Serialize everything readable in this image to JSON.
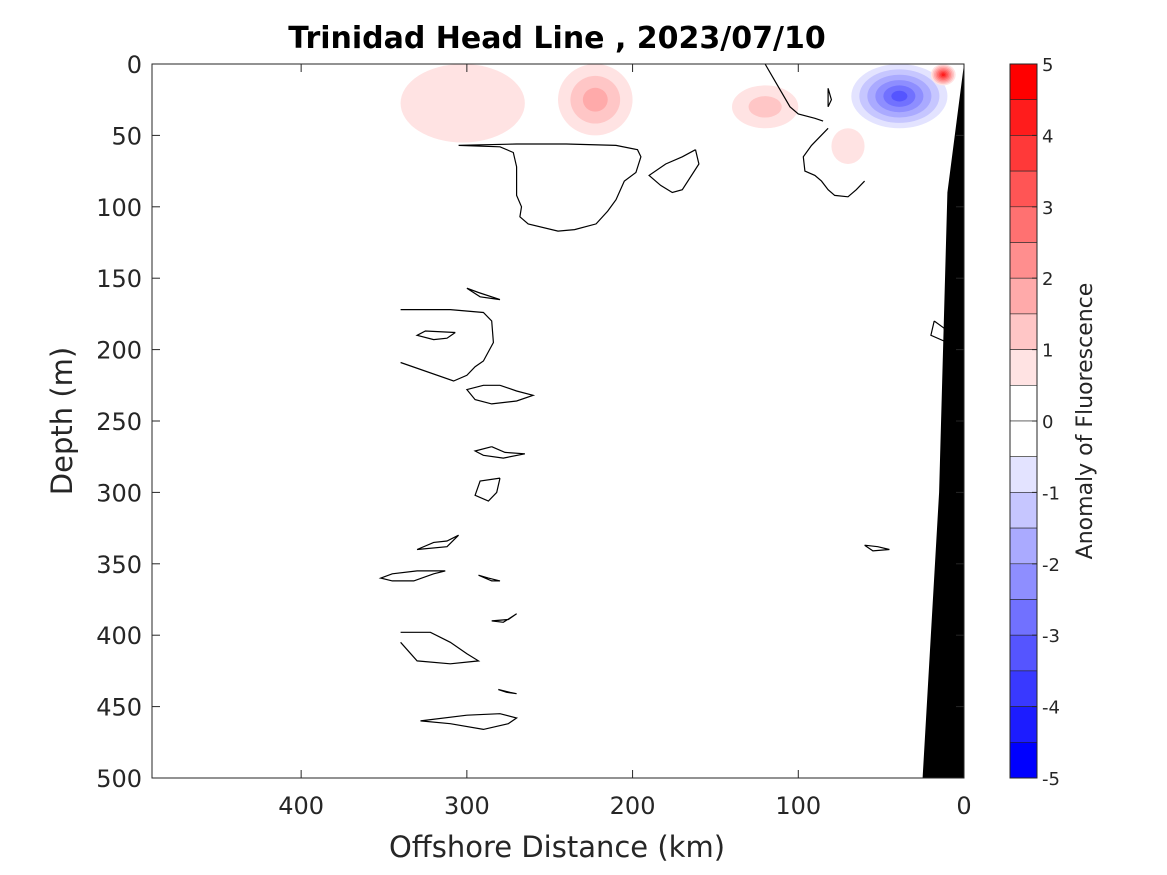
{
  "chart_data": {
    "type": "heatmap",
    "subtype": "contour-section",
    "title": "Trinidad Head Line , 2023/07/10",
    "xlabel": "Offshore Distance (km)",
    "ylabel": "Depth (m)",
    "colorbar_label": "Anomaly of Fluorescence",
    "xlim": [
      490,
      0
    ],
    "ylim": [
      500,
      0
    ],
    "x_reversed": true,
    "y_reversed": true,
    "x_ticks": [
      400,
      300,
      200,
      100,
      0
    ],
    "x_tick_labels": [
      "400",
      "300",
      "200",
      "100",
      "0"
    ],
    "y_ticks": [
      0,
      50,
      100,
      150,
      200,
      250,
      300,
      350,
      400,
      450,
      500
    ],
    "y_tick_labels": [
      "0",
      "50",
      "100",
      "150",
      "200",
      "250",
      "300",
      "350",
      "400",
      "450",
      "500"
    ],
    "colorbar": {
      "range": [
        -5,
        5
      ],
      "ticks": [
        5,
        4,
        3,
        2,
        1,
        0,
        -1,
        -2,
        -3,
        -4,
        -5
      ],
      "tick_labels": [
        "5",
        "4",
        "3",
        "2",
        "1",
        "0",
        "-1",
        "-2",
        "-3",
        "-4",
        "-5"
      ],
      "levels": [
        {
          "from": 4.5,
          "to": 5.0,
          "color": "#ff0000"
        },
        {
          "from": 4.0,
          "to": 4.5,
          "color": "#ff1c1c"
        },
        {
          "from": 3.5,
          "to": 4.0,
          "color": "#ff3939"
        },
        {
          "from": 3.0,
          "to": 3.5,
          "color": "#ff5555"
        },
        {
          "from": 2.5,
          "to": 3.0,
          "color": "#ff7171"
        },
        {
          "from": 2.0,
          "to": 2.5,
          "color": "#ff8e8e"
        },
        {
          "from": 1.5,
          "to": 2.0,
          "color": "#ffaaaa"
        },
        {
          "from": 1.0,
          "to": 1.5,
          "color": "#ffc6c6"
        },
        {
          "from": 0.5,
          "to": 1.0,
          "color": "#ffe3e3"
        },
        {
          "from": 0.0,
          "to": 0.5,
          "color": "#ffffff"
        },
        {
          "from": -0.5,
          "to": 0.0,
          "color": "#ffffff"
        },
        {
          "from": -1.0,
          "to": -0.5,
          "color": "#e3e3ff"
        },
        {
          "from": -1.5,
          "to": -1.0,
          "color": "#c6c6ff"
        },
        {
          "from": -2.0,
          "to": -1.5,
          "color": "#aaaaff"
        },
        {
          "from": -2.5,
          "to": -2.0,
          "color": "#8e8eff"
        },
        {
          "from": -3.0,
          "to": -2.5,
          "color": "#7171ff"
        },
        {
          "from": -3.5,
          "to": -3.0,
          "color": "#5555ff"
        },
        {
          "from": -4.0,
          "to": -3.5,
          "color": "#3939ff"
        },
        {
          "from": -4.5,
          "to": -4.0,
          "color": "#1c1cff"
        },
        {
          "from": -5.0,
          "to": -4.5,
          "color": "#0000ff"
        }
      ]
    },
    "data_extent_x": [
      340,
      0
    ],
    "anomaly_features": [
      {
        "name": "positive-patch-offshore",
        "x": [
          340,
          265
        ],
        "y": [
          0,
          55
        ],
        "peak": 0.8
      },
      {
        "name": "positive-patch-220km",
        "x": [
          245,
          200
        ],
        "y": [
          0,
          50
        ],
        "peak": 1.5
      },
      {
        "name": "positive-patch-120km",
        "x": [
          140,
          100
        ],
        "y": [
          15,
          45
        ],
        "peak": 1.2
      },
      {
        "name": "positive-patch-60km",
        "x": [
          80,
          60
        ],
        "y": [
          45,
          70
        ],
        "peak": 0.8
      },
      {
        "name": "negative-patch-40km",
        "x": [
          68,
          10
        ],
        "y": [
          0,
          45
        ],
        "peak": -3.4
      },
      {
        "name": "positive-patch-nearshore",
        "x": [
          20,
          5
        ],
        "y": [
          0,
          15
        ],
        "peak": 4.2
      }
    ],
    "bathymetry": [
      [
        25,
        500
      ],
      [
        15,
        300
      ],
      [
        10,
        90
      ],
      [
        0,
        0
      ]
    ],
    "bathymetry_color": "#000000",
    "zero_contours": [
      [
        [
          305,
          57
        ],
        [
          280,
          58
        ],
        [
          272,
          62
        ],
        [
          270,
          72
        ],
        [
          270,
          92
        ],
        [
          267,
          100
        ],
        [
          268,
          107
        ],
        [
          263,
          112
        ],
        [
          245,
          117
        ],
        [
          235,
          116
        ],
        [
          222,
          112
        ],
        [
          215,
          103
        ],
        [
          210,
          95
        ],
        [
          205,
          82
        ],
        [
          198,
          76
        ],
        [
          195,
          65
        ],
        [
          197,
          60
        ],
        [
          210,
          57
        ],
        [
          240,
          56
        ],
        [
          270,
          56
        ],
        [
          305,
          57
        ]
      ],
      [
        [
          120,
          0
        ],
        [
          115,
          10
        ],
        [
          110,
          20
        ],
        [
          105,
          30
        ],
        [
          100,
          35
        ],
        [
          90,
          38
        ],
        [
          85,
          40
        ]
      ],
      [
        [
          82,
          45
        ],
        [
          92,
          57
        ],
        [
          97,
          65
        ],
        [
          96,
          75
        ],
        [
          90,
          78
        ],
        [
          86,
          82
        ],
        [
          82,
          88
        ],
        [
          78,
          92
        ],
        [
          70,
          93
        ],
        [
          65,
          88
        ],
        [
          60,
          82
        ]
      ],
      [
        [
          162,
          60
        ],
        [
          170,
          65
        ],
        [
          180,
          70
        ],
        [
          190,
          78
        ],
        [
          183,
          85
        ],
        [
          176,
          90
        ],
        [
          170,
          88
        ],
        [
          160,
          70
        ],
        [
          162,
          60
        ]
      ],
      [
        [
          280,
          165
        ],
        [
          293,
          160
        ],
        [
          300,
          157
        ],
        [
          292,
          163
        ],
        [
          280,
          165
        ]
      ],
      [
        [
          340,
          172
        ],
        [
          310,
          172
        ],
        [
          290,
          174
        ],
        [
          285,
          180
        ],
        [
          284,
          195
        ],
        [
          290,
          208
        ],
        [
          295,
          212
        ],
        [
          300,
          218
        ],
        [
          308,
          222
        ],
        [
          340,
          209
        ]
      ],
      [
        [
          307,
          188
        ],
        [
          312,
          192
        ],
        [
          320,
          193
        ],
        [
          330,
          190
        ],
        [
          325,
          187
        ],
        [
          307,
          188
        ]
      ],
      [
        [
          280,
          225
        ],
        [
          270,
          229
        ],
        [
          260,
          232
        ],
        [
          270,
          236
        ],
        [
          285,
          238
        ],
        [
          295,
          235
        ],
        [
          300,
          228
        ],
        [
          290,
          225
        ],
        [
          280,
          225
        ]
      ],
      [
        [
          285,
          268
        ],
        [
          277,
          272
        ],
        [
          265,
          273
        ],
        [
          278,
          276
        ],
        [
          290,
          274
        ],
        [
          295,
          271
        ],
        [
          285,
          268
        ]
      ],
      [
        [
          280,
          290
        ],
        [
          282,
          300
        ],
        [
          287,
          306
        ],
        [
          295,
          302
        ],
        [
          292,
          292
        ],
        [
          280,
          290
        ]
      ],
      [
        [
          305,
          330
        ],
        [
          312,
          334
        ],
        [
          320,
          335
        ],
        [
          330,
          340
        ],
        [
          312,
          338
        ],
        [
          305,
          330
        ]
      ],
      [
        [
          313,
          355
        ],
        [
          320,
          357
        ],
        [
          332,
          362
        ],
        [
          345,
          362
        ],
        [
          352,
          360
        ],
        [
          345,
          357
        ],
        [
          330,
          355
        ],
        [
          313,
          355
        ]
      ],
      [
        [
          293,
          358
        ],
        [
          285,
          362
        ],
        [
          280,
          362
        ],
        [
          287,
          360
        ],
        [
          293,
          358
        ]
      ],
      [
        [
          270,
          385
        ],
        [
          275,
          389
        ],
        [
          285,
          390
        ],
        [
          278,
          391
        ],
        [
          270,
          385
        ]
      ],
      [
        [
          340,
          398
        ],
        [
          322,
          398
        ],
        [
          310,
          405
        ],
        [
          300,
          413
        ],
        [
          293,
          418
        ],
        [
          310,
          420
        ],
        [
          330,
          418
        ],
        [
          340,
          405
        ]
      ],
      [
        [
          281,
          438
        ],
        [
          274,
          440
        ],
        [
          270,
          441
        ],
        [
          276,
          440
        ],
        [
          281,
          438
        ]
      ],
      [
        [
          300,
          456
        ],
        [
          280,
          455
        ],
        [
          270,
          458
        ],
        [
          275,
          462
        ],
        [
          290,
          466
        ],
        [
          310,
          462
        ],
        [
          328,
          460
        ],
        [
          300,
          456
        ]
      ],
      [
        [
          60,
          337
        ],
        [
          52,
          338
        ],
        [
          45,
          340
        ],
        [
          55,
          341
        ],
        [
          60,
          337
        ]
      ],
      [
        [
          82,
          17
        ],
        [
          80,
          25
        ],
        [
          82,
          30
        ],
        [
          82,
          17
        ]
      ],
      [
        [
          18,
          180
        ],
        [
          12,
          185
        ],
        [
          10,
          195
        ],
        [
          20,
          190
        ],
        [
          18,
          180
        ]
      ]
    ]
  }
}
